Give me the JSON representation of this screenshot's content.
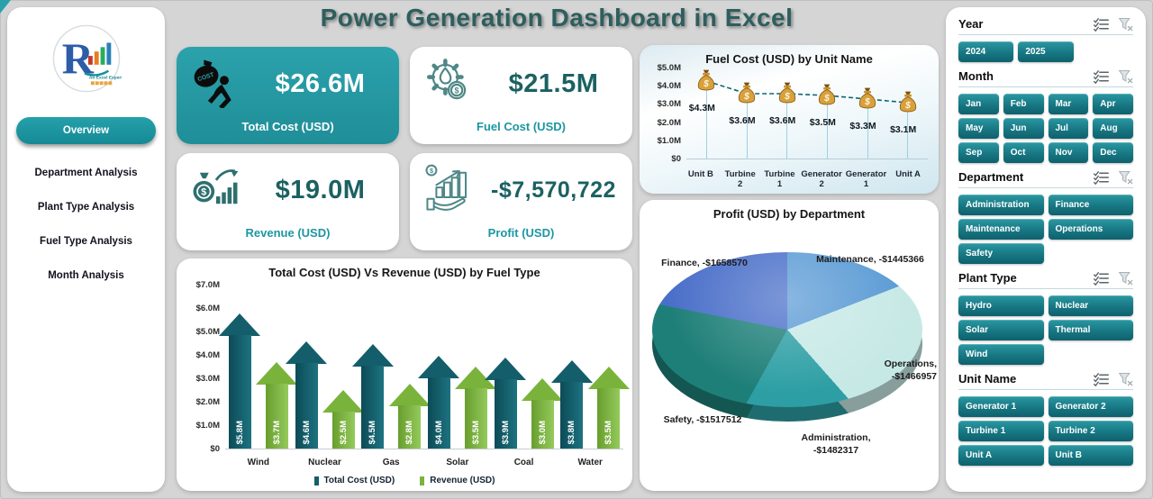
{
  "title": "Power Generation Dashboard in Excel",
  "logo": {
    "letter": "R",
    "tagline": "An Excel Expert"
  },
  "sidebar": {
    "nav": [
      {
        "label": "Overview",
        "active": true
      },
      {
        "label": "Department Analysis",
        "active": false
      },
      {
        "label": "Plant Type Analysis",
        "active": false
      },
      {
        "label": "Fuel Type Analysis",
        "active": false
      },
      {
        "label": "Month Analysis",
        "active": false
      }
    ]
  },
  "kpis": [
    {
      "value": "$26.6M",
      "label": "Total Cost (USD)",
      "icon": "cost-bag-carrier-icon",
      "accent": "#25a0aa"
    },
    {
      "value": "$21.5M",
      "label": "Fuel Cost (USD)",
      "icon": "fuel-gear-flame-icon",
      "accent": "#1b97a1"
    },
    {
      "value": "$19.0M",
      "label": "Revenue (USD)",
      "icon": "revenue-moneybag-bars-icon",
      "accent": "#1b97a1"
    },
    {
      "value": "-$7,570,722",
      "label": "Profit (USD)",
      "icon": "profit-hand-chart-icon",
      "accent": "#1b97a1"
    }
  ],
  "chart_data": [
    {
      "id": "total-cost-vs-revenue-by-fuel-type",
      "type": "bar",
      "title": "Total Cost (USD) Vs Revenue (USD) by Fuel Type",
      "categories": [
        "Wind",
        "Nuclear",
        "Gas",
        "Solar",
        "Coal",
        "Water"
      ],
      "series": [
        {
          "name": "Total Cost (USD)",
          "color": "#135e6a",
          "values_m": [
            5.8,
            4.6,
            4.5,
            4.0,
            3.9,
            3.8
          ],
          "labels": [
            "$5.8M",
            "$4.6M",
            "$4.5M",
            "$4.0M",
            "$3.9M",
            "$3.8M"
          ]
        },
        {
          "name": "Revenue (USD)",
          "color": "#7ab33b",
          "values_m": [
            3.7,
            2.5,
            2.8,
            3.5,
            3.0,
            3.5
          ],
          "labels": [
            "$3.7M",
            "$2.5M",
            "$2.8M",
            "$3.5M",
            "$3.0M",
            "$3.5M"
          ]
        }
      ],
      "y_ticks": [
        "$7.0M",
        "$6.0M",
        "$5.0M",
        "$4.0M",
        "$3.0M",
        "$2.0M",
        "$1.0M",
        "$0"
      ],
      "ylim_m": [
        0,
        7
      ],
      "legend_position": "bottom",
      "grid": false
    },
    {
      "id": "fuel-cost-by-unit-name",
      "type": "line",
      "title": "Fuel Cost (USD) by Unit Name",
      "categories": [
        "Unit B",
        "Turbine 2",
        "Turbine 1",
        "Generator 2",
        "Generator 1",
        "Unit A"
      ],
      "values_m": [
        4.3,
        3.6,
        3.6,
        3.5,
        3.3,
        3.1
      ],
      "labels": [
        "$4.3M",
        "$3.6M",
        "$3.6M",
        "$3.5M",
        "$3.3M",
        "$3.1M"
      ],
      "y_ticks": [
        "$5.0M",
        "$4.0M",
        "$3.0M",
        "$2.0M",
        "$1.0M",
        "$0"
      ],
      "ylim_m": [
        0,
        5
      ],
      "marker": "money-bag-icon",
      "line_style": "dashed",
      "line_color": "#0e6672",
      "grid": false
    },
    {
      "id": "profit-by-department",
      "type": "pie",
      "title": "Profit (USD) by Department",
      "slices": [
        {
          "name": "Maintenance",
          "label": "Maintenance, -$1445366",
          "value": 1445366,
          "color": "#5b9bd5"
        },
        {
          "name": "Operations",
          "label": "Operations, -$1466957",
          "value": 1466957,
          "color": "#c7e9e6"
        },
        {
          "name": "Administration",
          "label": "Administration, -$1482317",
          "value": 1482317,
          "color": "#2d9fa4"
        },
        {
          "name": "Safety",
          "label": "Safety, -$1517512",
          "value": 1517512,
          "color": "#1e7f78"
        },
        {
          "name": "Finance",
          "label": "Finance, -$1658570",
          "value": 1658570,
          "color": "#4a6fc9"
        }
      ],
      "style": "3d-pie"
    }
  ],
  "slicers": [
    {
      "name": "Year",
      "cols": 3,
      "items": [
        "2024",
        "2025"
      ]
    },
    {
      "name": "Month",
      "cols": 4,
      "items": [
        "Jan",
        "Feb",
        "Mar",
        "Apr",
        "May",
        "Jun",
        "Jul",
        "Aug",
        "Sep",
        "Oct",
        "Nov",
        "Dec"
      ]
    },
    {
      "name": "Department",
      "cols": 2,
      "items": [
        "Administration",
        "Finance",
        "Maintenance",
        "Operations",
        "Safety"
      ]
    },
    {
      "name": "Plant Type",
      "cols": 2,
      "items": [
        "Hydro",
        "Nuclear",
        "Solar",
        "Thermal",
        "Wind"
      ]
    },
    {
      "name": "Unit Name",
      "cols": 2,
      "items": [
        "Generator 1",
        "Generator 2",
        "Turbine 1",
        "Turbine 2",
        "Unit A",
        "Unit B"
      ]
    }
  ],
  "colors": {
    "accent_teal": "#1b97a1",
    "dark_teal_bar": "#135e6a",
    "green_bar": "#7ab33b",
    "title_text": "#2e5e5e"
  }
}
